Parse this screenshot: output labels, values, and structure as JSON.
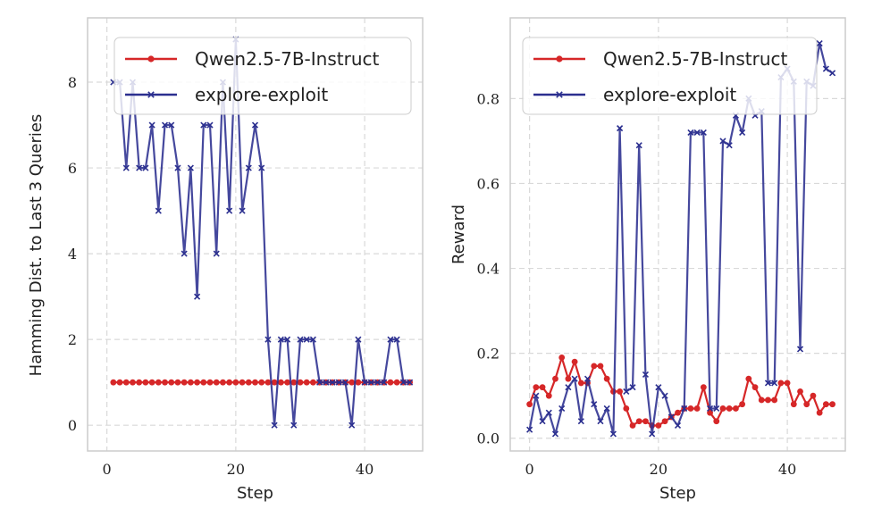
{
  "colors": {
    "red": "#d62728",
    "blue": "#2b2f8f",
    "grid": "#d9d9d9",
    "frame": "#cccccc"
  },
  "chart_data": [
    {
      "type": "line",
      "xlabel": "Step",
      "ylabel": "Hamming Dist. to Last 3 Queries",
      "xlim": [
        -3,
        49
      ],
      "ylim": [
        -0.6,
        9.5
      ],
      "xticks": [
        0,
        20,
        40
      ],
      "yticks": [
        0,
        2,
        4,
        6,
        8
      ],
      "grid": true,
      "legend": "top-right",
      "series": [
        {
          "name": "Qwen2.5-7B-Instruct",
          "color": "#d62728",
          "marker": "circle",
          "x": [
            1,
            2,
            3,
            4,
            5,
            6,
            7,
            8,
            9,
            10,
            11,
            12,
            13,
            14,
            15,
            16,
            17,
            18,
            19,
            20,
            21,
            22,
            23,
            24,
            25,
            26,
            27,
            28,
            29,
            30,
            31,
            32,
            33,
            34,
            35,
            36,
            37,
            38,
            39,
            40,
            41,
            42,
            43,
            44,
            45,
            46,
            47
          ],
          "y": [
            1,
            1,
            1,
            1,
            1,
            1,
            1,
            1,
            1,
            1,
            1,
            1,
            1,
            1,
            1,
            1,
            1,
            1,
            1,
            1,
            1,
            1,
            1,
            1,
            1,
            1,
            1,
            1,
            1,
            1,
            1,
            1,
            1,
            1,
            1,
            1,
            1,
            1,
            1,
            1,
            1,
            1,
            1,
            1,
            1,
            1,
            1
          ]
        },
        {
          "name": "explore-exploit",
          "color": "#2b2f8f",
          "marker": "x",
          "x": [
            1,
            2,
            3,
            4,
            5,
            6,
            7,
            8,
            9,
            10,
            11,
            12,
            13,
            14,
            15,
            16,
            17,
            18,
            19,
            20,
            21,
            22,
            23,
            24,
            25,
            26,
            27,
            28,
            29,
            30,
            31,
            32,
            33,
            34,
            35,
            36,
            37,
            38,
            39,
            40,
            41,
            42,
            43,
            44,
            45,
            46,
            47
          ],
          "y": [
            8,
            8,
            6,
            8,
            6,
            6,
            7,
            5,
            7,
            7,
            6,
            4,
            6,
            3,
            7,
            7,
            4,
            8,
            5,
            9,
            5,
            6,
            7,
            6,
            2,
            0,
            2,
            2,
            0,
            2,
            2,
            2,
            1,
            1,
            1,
            1,
            1,
            0,
            2,
            1,
            1,
            1,
            1,
            2,
            2,
            1,
            1
          ]
        }
      ]
    },
    {
      "type": "line",
      "xlabel": "Step",
      "ylabel": "Reward",
      "xlim": [
        -3,
        49
      ],
      "ylim": [
        -0.03,
        0.99
      ],
      "xticks": [
        0,
        20,
        40
      ],
      "yticks": [
        "0.0",
        "0.2",
        "0.4",
        "0.6",
        "0.8"
      ],
      "grid": true,
      "legend": "top-right",
      "series": [
        {
          "name": "Qwen2.5-7B-Instruct",
          "color": "#d62728",
          "marker": "circle",
          "x": [
            0,
            1,
            2,
            3,
            4,
            5,
            6,
            7,
            8,
            9,
            10,
            11,
            12,
            13,
            14,
            15,
            16,
            17,
            18,
            19,
            20,
            21,
            22,
            23,
            24,
            25,
            26,
            27,
            28,
            29,
            30,
            31,
            32,
            33,
            34,
            35,
            36,
            37,
            38,
            39,
            40,
            41,
            42,
            43,
            44,
            45,
            46,
            47
          ],
          "y": [
            0.08,
            0.12,
            0.12,
            0.1,
            0.14,
            0.19,
            0.14,
            0.18,
            0.13,
            0.13,
            0.17,
            0.17,
            0.14,
            0.11,
            0.11,
            0.07,
            0.03,
            0.04,
            0.04,
            0.03,
            0.03,
            0.04,
            0.05,
            0.06,
            0.07,
            0.07,
            0.07,
            0.12,
            0.06,
            0.04,
            0.07,
            0.07,
            0.07,
            0.08,
            0.14,
            0.12,
            0.09,
            0.09,
            0.09,
            0.13,
            0.13,
            0.08,
            0.11,
            0.08,
            0.1,
            0.06,
            0.08,
            0.08
          ]
        },
        {
          "name": "explore-exploit",
          "color": "#2b2f8f",
          "marker": "x",
          "x": [
            0,
            1,
            2,
            3,
            4,
            5,
            6,
            7,
            8,
            9,
            10,
            11,
            12,
            13,
            14,
            15,
            16,
            17,
            18,
            19,
            20,
            21,
            22,
            23,
            24,
            25,
            26,
            27,
            28,
            29,
            30,
            31,
            32,
            33,
            34,
            35,
            36,
            37,
            38,
            39,
            40,
            41,
            42,
            43,
            44,
            45,
            46,
            47
          ],
          "y": [
            0.02,
            0.1,
            0.04,
            0.06,
            0.01,
            0.07,
            0.12,
            0.14,
            0.04,
            0.14,
            0.08,
            0.04,
            0.07,
            0.01,
            0.73,
            0.11,
            0.12,
            0.69,
            0.15,
            0.01,
            0.12,
            0.1,
            0.05,
            0.03,
            0.07,
            0.72,
            0.72,
            0.72,
            0.07,
            0.07,
            0.7,
            0.69,
            0.76,
            0.72,
            0.8,
            0.76,
            0.77,
            0.13,
            0.13,
            0.85,
            0.87,
            0.84,
            0.21,
            0.84,
            0.83,
            0.93,
            0.87,
            0.86
          ]
        }
      ]
    }
  ]
}
